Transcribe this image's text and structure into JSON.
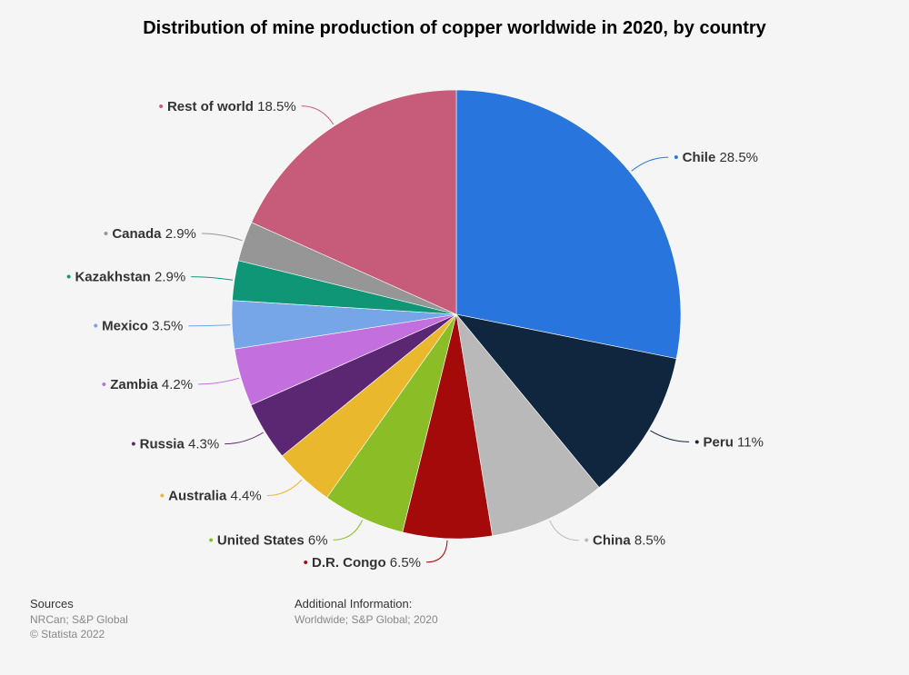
{
  "chart_data": {
    "type": "pie",
    "title": "Distribution of mine production of copper worldwide in 2020, by country",
    "value_suffix": "%",
    "slices": [
      {
        "label": "Chile",
        "value": 28.5,
        "display": "28.5%",
        "color": "#2876dd"
      },
      {
        "label": "Peru",
        "value": 11,
        "display": "11%",
        "color": "#10263f"
      },
      {
        "label": "China",
        "value": 8.5,
        "display": "8.5%",
        "color": "#b9b9b9"
      },
      {
        "label": "D.R. Congo",
        "value": 6.5,
        "display": "6.5%",
        "color": "#a40a0a"
      },
      {
        "label": "United States",
        "value": 6,
        "display": "6%",
        "color": "#8bbd27"
      },
      {
        "label": "Australia",
        "value": 4.4,
        "display": "4.4%",
        "color": "#eab82c"
      },
      {
        "label": "Russia",
        "value": 4.3,
        "display": "4.3%",
        "color": "#5b2773"
      },
      {
        "label": "Zambia",
        "value": 4.2,
        "display": "4.2%",
        "color": "#c36fde"
      },
      {
        "label": "Mexico",
        "value": 3.5,
        "display": "3.5%",
        "color": "#76a6e7"
      },
      {
        "label": "Kazakhstan",
        "value": 2.9,
        "display": "2.9%",
        "color": "#0e9676"
      },
      {
        "label": "Canada",
        "value": 2.9,
        "display": "2.9%",
        "color": "#969696"
      },
      {
        "label": "Rest of world",
        "value": 18.5,
        "display": "18.5%",
        "color": "#c75b7a"
      }
    ]
  },
  "footer": {
    "sources_heading": "Sources",
    "sources_line1": "NRCan; S&P Global",
    "sources_line2": "© Statista 2022",
    "additional_heading": "Additional Information:",
    "additional_text": "Worldwide; S&P Global; 2020"
  }
}
